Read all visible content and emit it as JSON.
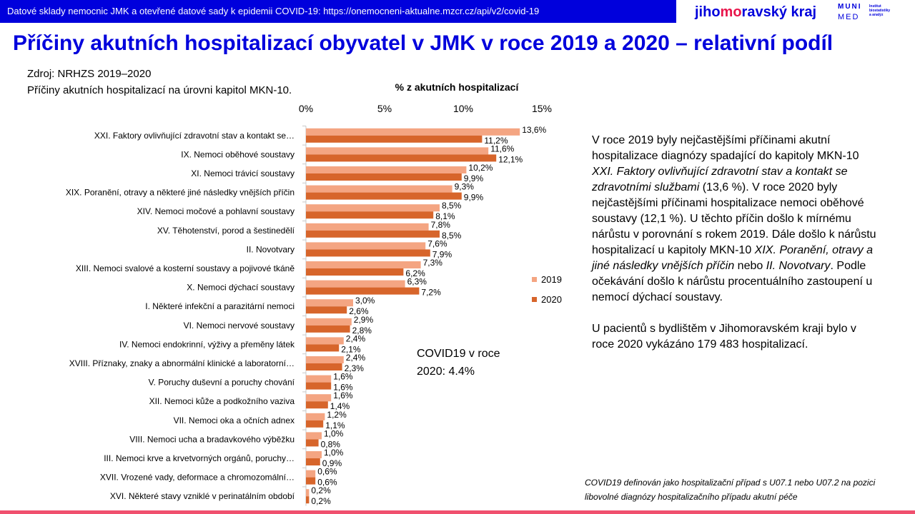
{
  "header": {
    "source_bar": "Datové sklady nemocnic JMK a otevřené datové sady k epidemii COVID-19: https://onemocneni-aktualne.mzcr.cz/api/v2/covid-19",
    "logo_jmk_pre": "jiho",
    "logo_jmk_hl": "mo",
    "logo_jmk_post": "ravský kraj",
    "logo_muni_1": "MUNI",
    "logo_muni_2": "MED",
    "logo_muni_3": "Institut biostatistiky a analýz"
  },
  "page_title": "Příčiny akutních hospitalizací obyvatel v JMK v roce 2019 a 2020 – relativní podíl",
  "source": {
    "line1": "Zdroj: NRHZS 2019–2020",
    "line2": "Příčiny akutních hospitalizací na úrovni kapitol MKN-10."
  },
  "covid_note": {
    "line1": "COVID19 v roce",
    "line2": "2020: 4.4%"
  },
  "description": {
    "p1_a": "V roce 2019 byly nejčastějšími příčinami akutní hospitalizace diagnózy spadající do kapitoly MKN-10 ",
    "p1_b": "XXI. Faktory ovlivňující zdravotní stav a kontakt se zdravotními službami",
    "p1_c": " (13,6 %). V roce 2020 byly nejčastějšími příčinami hospitalizace nemoci oběhové soustavy (12,1 %). U těchto příčin došlo k mírnému nárůstu v porovnání s rokem 2019. Dále došlo k nárůstu hospitalizací u kapitoly MKN-10 ",
    "p1_d": "XIX. Poranění, otravy a jiné následky vnějších příčin",
    "p1_e": " nebo ",
    "p1_f": "II. Novotvary",
    "p1_g": ". Podle očekávání došlo k nárůstu procentuálního zastoupení u nemocí dýchací soustavy.",
    "p2": "U pacientů s bydlištěm v Jihomoravském kraji bylo v roce 2020 vykázáno  179 483 hospitalizací."
  },
  "footnote": "COVID19 definován jako hospitalizační případ s U07.1 nebo U07.2 na pozici libovolné diagnózy hospitalizačního případu akutní péče",
  "colors": {
    "brand_blue": "#0000dc",
    "series_2019": "#f4a582",
    "series_2020": "#d7652b",
    "accent_pink": "#f0506e"
  },
  "chart_data": {
    "type": "bar",
    "orientation": "horizontal",
    "title": "% z akutních hospitalizací",
    "xlim": [
      0,
      15
    ],
    "xticks": [
      "0%",
      "5%",
      "10%",
      "15%"
    ],
    "legend_position": "right",
    "categories": [
      "XXI. Faktory ovlivňující zdravotní stav a kontakt se…",
      "IX. Nemoci oběhové soustavy",
      "XI. Nemoci trávicí soustavy",
      "XIX. Poranění, otravy a některé jiné následky vnějších příčin",
      "XIV. Nemoci močové a pohlavní soustavy",
      "XV. Těhotenství, porod a šestinedělí",
      "II. Novotvary",
      "XIII. Nemoci svalové a kosterní soustavy a pojivové tkáně",
      "X. Nemoci dýchací soustavy",
      "I. Některé infekční a parazitární nemoci",
      "VI. Nemoci nervové soustavy",
      "IV. Nemoci endokrinní, výživy a přeměny látek",
      "XVIII. Příznaky, znaky a abnormální klinické a laboratorní…",
      "V. Poruchy duševní a poruchy chování",
      "XII. Nemoci kůže a podkožního vaziva",
      "VII. Nemoci oka a očních adnex",
      "VIII. Nemoci ucha a bradavkového výběžku",
      "III. Nemoci krve a krvetvorných orgánů, poruchy…",
      "XVII. Vrozené vady, deformace a chromozomální…",
      "XVI. Některé stavy vzniklé v perinatálním období"
    ],
    "series": [
      {
        "name": "2019",
        "values": [
          13.6,
          11.6,
          10.2,
          9.3,
          8.5,
          7.8,
          7.6,
          7.3,
          6.3,
          3.0,
          2.9,
          2.4,
          2.4,
          1.6,
          1.6,
          1.2,
          1.0,
          1.0,
          0.6,
          0.2
        ],
        "labels": [
          "13,6%",
          "11,6%",
          "10,2%",
          "9,3%",
          "8,5%",
          "7,8%",
          "7,6%",
          "7,3%",
          "6,3%",
          "3,0%",
          "2,9%",
          "2,4%",
          "2,4%",
          "1,6%",
          "1,6%",
          "1,2%",
          "1,0%",
          "1,0%",
          "0,6%",
          "0,2%"
        ]
      },
      {
        "name": "2020",
        "values": [
          11.2,
          12.1,
          9.9,
          9.9,
          8.1,
          8.5,
          7.9,
          6.2,
          7.2,
          2.6,
          2.8,
          2.1,
          2.3,
          1.6,
          1.4,
          1.1,
          0.8,
          0.9,
          0.6,
          0.2
        ],
        "labels": [
          "11,2%",
          "12,1%",
          "9,9%",
          "9,9%",
          "8,1%",
          "8,5%",
          "7,9%",
          "6,2%",
          "7,2%",
          "2,6%",
          "2,8%",
          "2,1%",
          "2,3%",
          "1,6%",
          "1,4%",
          "1,1%",
          "0,8%",
          "0,9%",
          "0,6%",
          "0,2%"
        ]
      }
    ]
  }
}
